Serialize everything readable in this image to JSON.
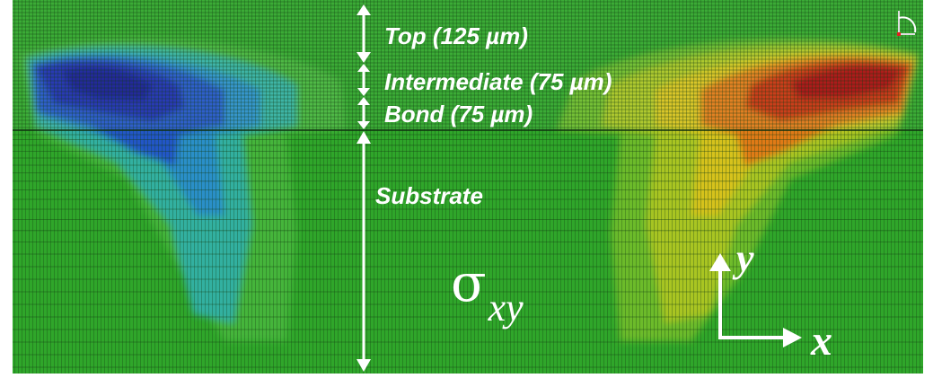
{
  "labels": {
    "top": "Top (125 µm)",
    "intermediate": "Intermediate (75 µm)",
    "bond": "Bond (75 µm)",
    "substrate": "Substrate"
  },
  "quantity": {
    "symbol": "σ",
    "subscript": "xy"
  },
  "axes": {
    "y": "y",
    "x": "x"
  },
  "colors": {
    "field_green": "#2fa62a",
    "mesh_line": "#1e5a1e",
    "negative_extreme": "#1a1aa0",
    "positive_extreme": "#b00000",
    "annotation": "#ffffff"
  },
  "icons": [
    "view-triad-icon"
  ]
}
